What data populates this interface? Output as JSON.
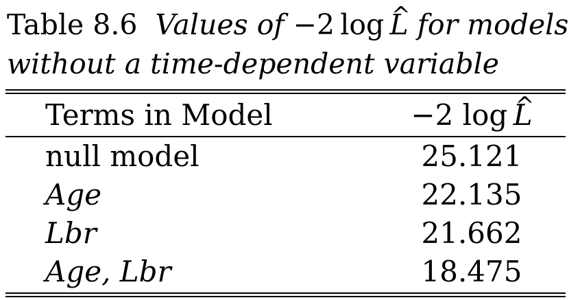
{
  "caption": {
    "label": "Table 8.6",
    "desc_before": "Values of",
    "math": "−2 log L̂",
    "desc_after_line1": "for models",
    "line2": "without a time-dependent variable"
  },
  "table": {
    "headers": {
      "terms": "Terms in Model",
      "value_prefix": "−2 log",
      "value_var": "L"
    },
    "rows": [
      {
        "terms": "null model",
        "value": "25.121",
        "italic": false
      },
      {
        "terms": "Age",
        "value": "22.135",
        "italic": true
      },
      {
        "terms": "Lbr",
        "value": "21.662",
        "italic": true
      },
      {
        "terms": "Age, Lbr",
        "value": "18.475",
        "italic": true
      }
    ]
  }
}
